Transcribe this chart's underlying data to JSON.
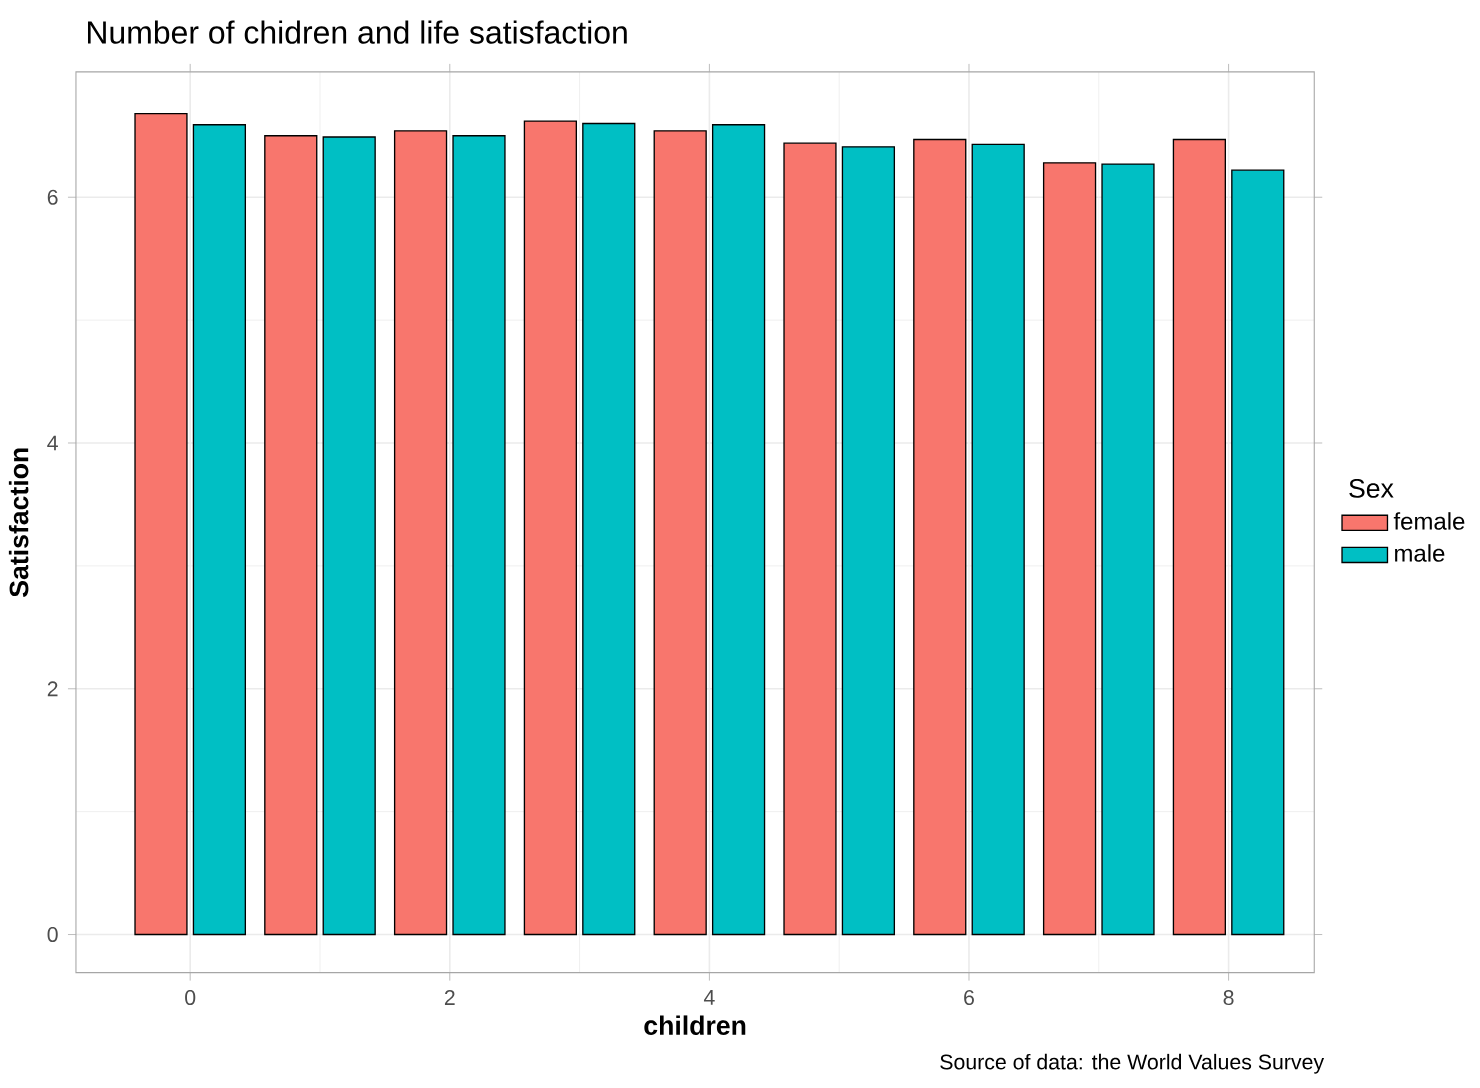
{
  "chart_data": {
    "type": "bar",
    "title": "Number of chidren and life satisfaction",
    "xlabel": "children",
    "ylabel": "Satisfaction",
    "legend_title": "Sex",
    "x": [
      0,
      1,
      2,
      3,
      4,
      5,
      6,
      7,
      8
    ],
    "series": [
      {
        "name": "female",
        "color": "#f8766d",
        "values": [
          6.68,
          6.5,
          6.54,
          6.62,
          6.54,
          6.44,
          6.47,
          6.28,
          6.47
        ]
      },
      {
        "name": "male",
        "color": "#00bfc4",
        "values": [
          6.59,
          6.49,
          6.5,
          6.6,
          6.59,
          6.41,
          6.43,
          6.27,
          6.22
        ]
      }
    ],
    "xlim": [
      -0.88,
      8.66
    ],
    "xticks": [
      0,
      2,
      4,
      6,
      8
    ],
    "ylim": [
      -0.31,
      7.02
    ],
    "yticks": [
      0,
      2,
      4,
      6
    ],
    "grid": true,
    "legend": "right",
    "annotations": [
      "Source of data: the World Values Survey"
    ]
  }
}
